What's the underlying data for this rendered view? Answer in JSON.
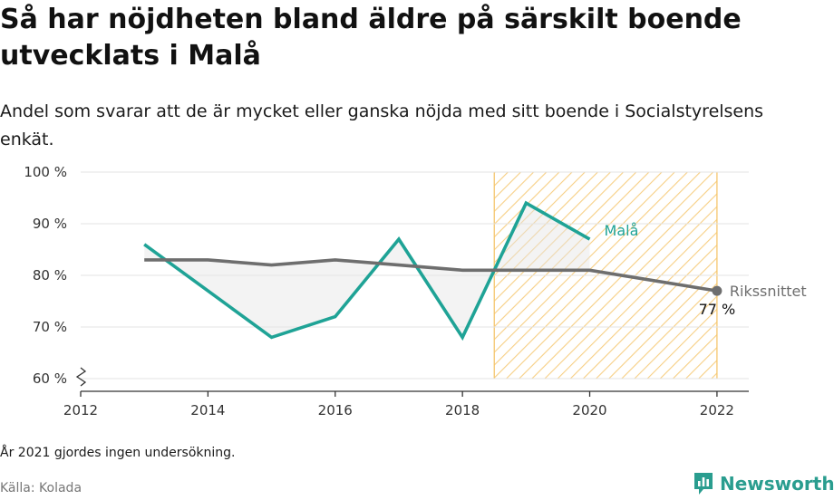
{
  "header": {
    "title": "Så har nöjdheten bland äldre på särskilt boende utvecklats i Malå",
    "subtitle": "Andel som svarar att de är mycket eller ganska nöjda med sitt boende i Socialstyrelsens enkät."
  },
  "footer": {
    "note": "År 2021 gjordes ingen undersökning.",
    "source": "Källa: Kolada",
    "brand": "Newsworthy"
  },
  "colors": {
    "mala": "#1fa396",
    "riks": "#6e6e6e",
    "highlight": "#f5c66e",
    "grid": "#e3e3e3",
    "brand": "#2a9d8f"
  },
  "chart_data": {
    "type": "line",
    "x_ticks": [
      2012,
      2014,
      2016,
      2018,
      2020,
      2022
    ],
    "y_ticks": [
      60,
      70,
      80,
      90,
      100
    ],
    "y_tick_labels": [
      "60 %",
      "70 %",
      "80 %",
      "90 %",
      "100 %"
    ],
    "xlim": [
      2012,
      2022.5
    ],
    "ylim": [
      60,
      100
    ],
    "y_axis_break": true,
    "grid": true,
    "highlight_range": [
      2018.5,
      2022
    ],
    "series": [
      {
        "name": "Malå",
        "color": "#1fa396",
        "x": [
          2013,
          2014,
          2015,
          2016,
          2017,
          2018,
          2019,
          2020
        ],
        "values": [
          86,
          77,
          68,
          72,
          87,
          68,
          94,
          87
        ]
      },
      {
        "name": "Rikssnittet",
        "color": "#6e6e6e",
        "x": [
          2013,
          2014,
          2015,
          2016,
          2017,
          2018,
          2019,
          2020,
          2022
        ],
        "values": [
          83,
          83,
          82,
          83,
          82,
          81,
          81,
          81,
          77
        ]
      }
    ],
    "end_value_label": "77 %"
  }
}
